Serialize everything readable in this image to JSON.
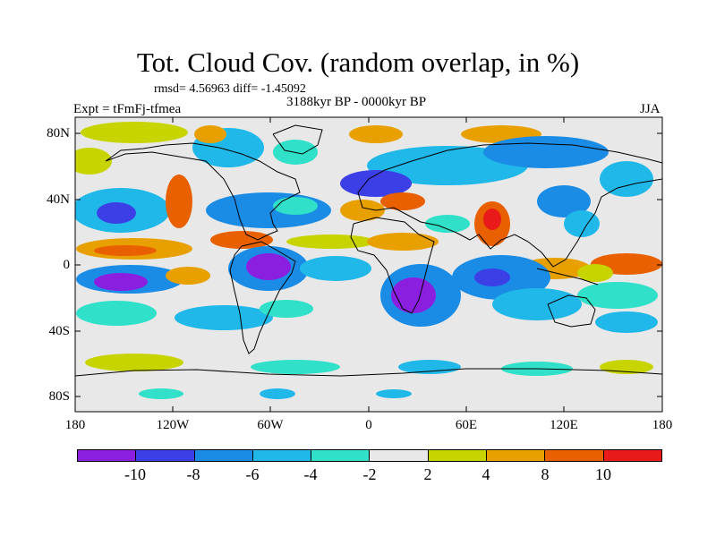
{
  "title": "Tot. Cloud Cov. (random overlap, in %)",
  "stats_line": "rmsd= 4.56963 diff= -1.45092",
  "experiment_label": "Expt = tFmFj-tfmea",
  "period_label": "3188kyr BP - 0000kyr BP",
  "season_label": "JJA",
  "latitude_ticks": [
    "80N",
    "40N",
    "0",
    "40S",
    "80S"
  ],
  "longitude_ticks": [
    "180",
    "120W",
    "60W",
    "0",
    "60E",
    "120E",
    "180"
  ],
  "colorbar": {
    "colors": [
      "#8a1fe0",
      "#3c3ee6",
      "#1a8ce6",
      "#20b8e8",
      "#30e0c8",
      "#e8e8e8",
      "#c8d400",
      "#e8a000",
      "#e86000",
      "#e81a1a"
    ],
    "labels": [
      "-10",
      "-8",
      "-6",
      "-4",
      "-2",
      "2",
      "4",
      "8",
      "10"
    ]
  }
}
